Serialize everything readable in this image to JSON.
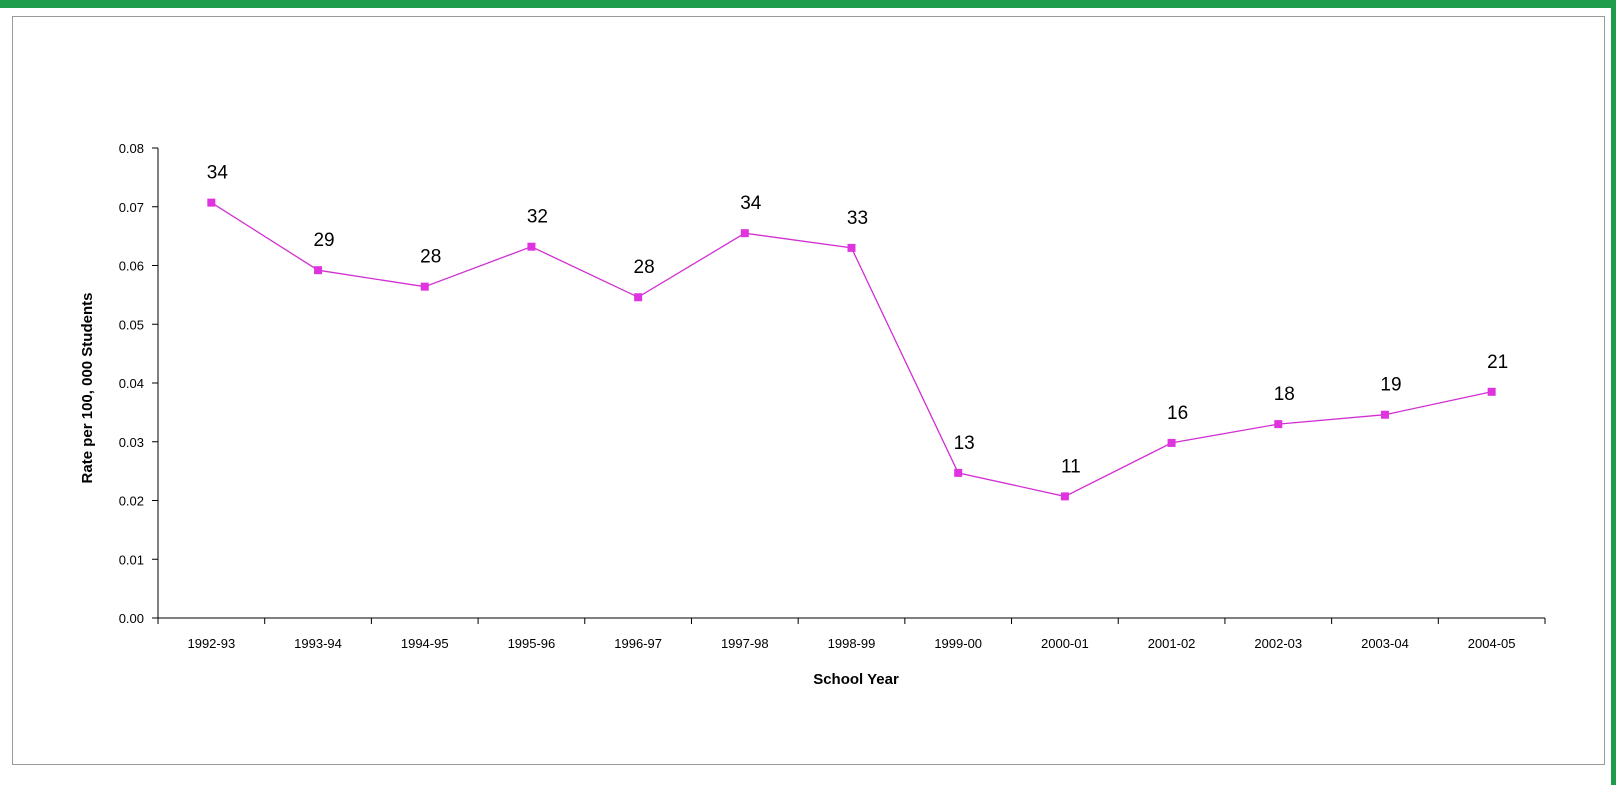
{
  "colors": {
    "frame_accent": "#1f9d4d",
    "series": "#d12fd1",
    "marker": "#e033e0",
    "axis": "#000000"
  },
  "chart_data": {
    "type": "line",
    "title": "",
    "xlabel": "School Year",
    "ylabel": "Rate per 100, 000 Students",
    "ylim": [
      0,
      0.08
    ],
    "yticks": [
      "0.00",
      "0.01",
      "0.02",
      "0.03",
      "0.04",
      "0.05",
      "0.06",
      "0.07",
      "0.08"
    ],
    "grid": false,
    "legend": "none",
    "categories": [
      "1992-93",
      "1993-94",
      "1994-95",
      "1995-96",
      "1996-97",
      "1997-98",
      "1998-99",
      "1999-00",
      "2000-01",
      "2001-02",
      "2002-03",
      "2003-04",
      "2004-05"
    ],
    "series": [
      {
        "values": [
          0.0707,
          0.0592,
          0.0564,
          0.0632,
          0.0546,
          0.0655,
          0.063,
          0.0247,
          0.0207,
          0.0298,
          0.033,
          0.0346,
          0.0385
        ],
        "data_labels": [
          "34",
          "29",
          "28",
          "32",
          "28",
          "34",
          "33",
          "13",
          "11",
          "16",
          "18",
          "19",
          "21"
        ]
      }
    ]
  }
}
